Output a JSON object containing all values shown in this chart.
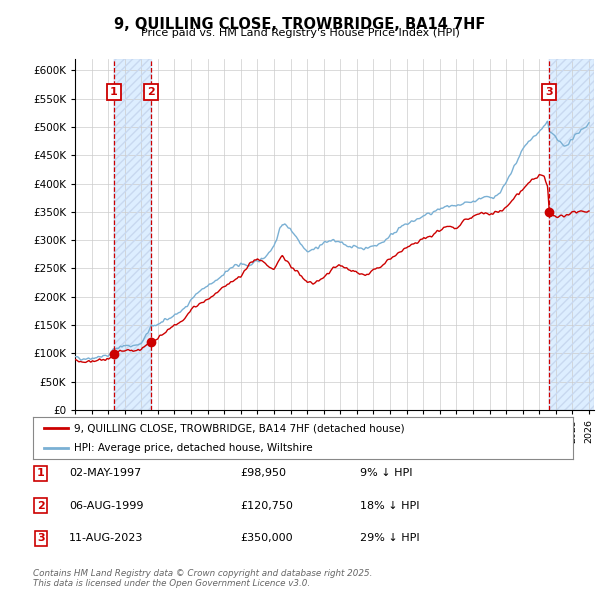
{
  "title": "9, QUILLING CLOSE, TROWBRIDGE, BA14 7HF",
  "subtitle": "Price paid vs. HM Land Registry's House Price Index (HPI)",
  "ylim": [
    0,
    620000
  ],
  "yticks": [
    0,
    50000,
    100000,
    150000,
    200000,
    250000,
    300000,
    350000,
    400000,
    450000,
    500000,
    550000,
    600000
  ],
  "xlim_start": 1995.0,
  "xlim_end": 2026.3,
  "sale_dates": [
    1997.33,
    1999.59,
    2023.61
  ],
  "sale_prices": [
    98950,
    120750,
    350000
  ],
  "sale_labels": [
    "1",
    "2",
    "3"
  ],
  "legend_line1": "9, QUILLING CLOSE, TROWBRIDGE, BA14 7HF (detached house)",
  "legend_line2": "HPI: Average price, detached house, Wiltshire",
  "table_data": [
    {
      "num": "1",
      "date": "02-MAY-1997",
      "price": "£98,950",
      "hpi": "9% ↓ HPI"
    },
    {
      "num": "2",
      "date": "06-AUG-1999",
      "price": "£120,750",
      "hpi": "18% ↓ HPI"
    },
    {
      "num": "3",
      "date": "11-AUG-2023",
      "price": "£350,000",
      "hpi": "29% ↓ HPI"
    }
  ],
  "footer": "Contains HM Land Registry data © Crown copyright and database right 2025.\nThis data is licensed under the Open Government Licence v3.0.",
  "red_color": "#cc0000",
  "blue_color": "#7ab0d4",
  "shade_color": "#ddeeff",
  "bg_color": "#ffffff",
  "hpi_anchors": [
    [
      1995.0,
      93000
    ],
    [
      1995.5,
      91000
    ],
    [
      1996.0,
      92000
    ],
    [
      1996.5,
      94000
    ],
    [
      1997.0,
      96000
    ],
    [
      1997.33,
      108000
    ],
    [
      1997.5,
      110000
    ],
    [
      1998.0,
      113000
    ],
    [
      1998.5,
      114000
    ],
    [
      1999.0,
      117000
    ],
    [
      1999.59,
      147000
    ],
    [
      2000.0,
      152000
    ],
    [
      2000.5,
      158000
    ],
    [
      2001.0,
      168000
    ],
    [
      2001.5,
      176000
    ],
    [
      2002.0,
      195000
    ],
    [
      2002.5,
      210000
    ],
    [
      2003.0,
      218000
    ],
    [
      2003.5,
      228000
    ],
    [
      2004.0,
      242000
    ],
    [
      2004.5,
      252000
    ],
    [
      2005.0,
      258000
    ],
    [
      2005.5,
      255000
    ],
    [
      2006.0,
      262000
    ],
    [
      2006.5,
      272000
    ],
    [
      2007.0,
      290000
    ],
    [
      2007.5,
      330000
    ],
    [
      2008.0,
      320000
    ],
    [
      2008.5,
      300000
    ],
    [
      2009.0,
      280000
    ],
    [
      2009.5,
      285000
    ],
    [
      2010.0,
      295000
    ],
    [
      2010.5,
      300000
    ],
    [
      2011.0,
      295000
    ],
    [
      2011.5,
      290000
    ],
    [
      2012.0,
      288000
    ],
    [
      2012.5,
      285000
    ],
    [
      2013.0,
      290000
    ],
    [
      2013.5,
      295000
    ],
    [
      2014.0,
      308000
    ],
    [
      2014.5,
      320000
    ],
    [
      2015.0,
      328000
    ],
    [
      2015.5,
      335000
    ],
    [
      2016.0,
      342000
    ],
    [
      2016.5,
      348000
    ],
    [
      2017.0,
      355000
    ],
    [
      2017.5,
      360000
    ],
    [
      2018.0,
      358000
    ],
    [
      2018.5,
      365000
    ],
    [
      2019.0,
      368000
    ],
    [
      2019.5,
      375000
    ],
    [
      2020.0,
      375000
    ],
    [
      2020.5,
      380000
    ],
    [
      2021.0,
      400000
    ],
    [
      2021.5,
      430000
    ],
    [
      2022.0,
      460000
    ],
    [
      2022.5,
      480000
    ],
    [
      2023.0,
      490000
    ],
    [
      2023.5,
      510000
    ],
    [
      2023.61,
      492000
    ],
    [
      2024.0,
      480000
    ],
    [
      2024.5,
      465000
    ],
    [
      2025.0,
      478000
    ],
    [
      2025.5,
      495000
    ],
    [
      2026.0,
      505000
    ]
  ],
  "pp_anchors": [
    [
      1995.0,
      87000
    ],
    [
      1995.5,
      85000
    ],
    [
      1996.0,
      86000
    ],
    [
      1996.5,
      88000
    ],
    [
      1997.0,
      90000
    ],
    [
      1997.33,
      98950
    ],
    [
      1997.5,
      101000
    ],
    [
      1998.0,
      104000
    ],
    [
      1998.5,
      105000
    ],
    [
      1999.0,
      108000
    ],
    [
      1999.59,
      120750
    ],
    [
      2000.0,
      128000
    ],
    [
      2000.5,
      138000
    ],
    [
      2001.0,
      150000
    ],
    [
      2001.5,
      158000
    ],
    [
      2002.0,
      175000
    ],
    [
      2002.5,
      188000
    ],
    [
      2003.0,
      196000
    ],
    [
      2003.5,
      205000
    ],
    [
      2004.0,
      218000
    ],
    [
      2004.5,
      228000
    ],
    [
      2005.0,
      235000
    ],
    [
      2005.5,
      258000
    ],
    [
      2006.0,
      268000
    ],
    [
      2006.5,
      258000
    ],
    [
      2007.0,
      248000
    ],
    [
      2007.5,
      273000
    ],
    [
      2008.0,
      253000
    ],
    [
      2008.5,
      242000
    ],
    [
      2009.0,
      225000
    ],
    [
      2009.5,
      225000
    ],
    [
      2010.0,
      235000
    ],
    [
      2010.5,
      248000
    ],
    [
      2011.0,
      255000
    ],
    [
      2011.5,
      248000
    ],
    [
      2012.0,
      242000
    ],
    [
      2012.5,
      238000
    ],
    [
      2013.0,
      248000
    ],
    [
      2013.5,
      255000
    ],
    [
      2014.0,
      265000
    ],
    [
      2014.5,
      278000
    ],
    [
      2015.0,
      285000
    ],
    [
      2015.5,
      295000
    ],
    [
      2016.0,
      302000
    ],
    [
      2016.5,
      308000
    ],
    [
      2017.0,
      318000
    ],
    [
      2017.5,
      325000
    ],
    [
      2018.0,
      322000
    ],
    [
      2018.5,
      335000
    ],
    [
      2019.0,
      342000
    ],
    [
      2019.5,
      348000
    ],
    [
      2020.0,
      345000
    ],
    [
      2020.5,
      348000
    ],
    [
      2021.0,
      358000
    ],
    [
      2021.5,
      375000
    ],
    [
      2022.0,
      390000
    ],
    [
      2022.5,
      405000
    ],
    [
      2023.0,
      415000
    ],
    [
      2023.3,
      412000
    ],
    [
      2023.5,
      395000
    ],
    [
      2023.61,
      350000
    ],
    [
      2024.0,
      340000
    ],
    [
      2024.5,
      342000
    ],
    [
      2025.0,
      348000
    ],
    [
      2025.5,
      352000
    ],
    [
      2026.0,
      350000
    ]
  ]
}
